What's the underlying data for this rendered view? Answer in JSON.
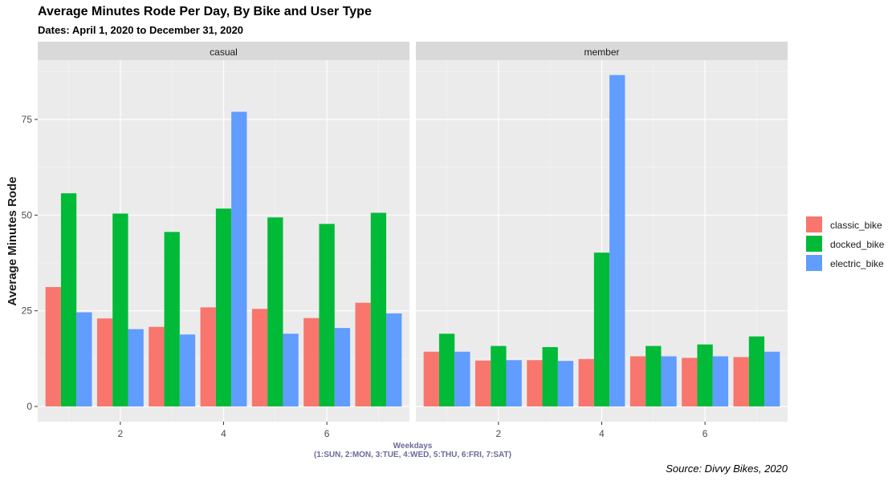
{
  "chart_data": {
    "type": "bar",
    "title": "Average Minutes Rode Per Day, By Bike and User Type",
    "subtitle": "Dates: April 1, 2020 to December 31, 2020",
    "caption": "Source: Divvy Bikes, 2020",
    "ylabel": "Average Minutes Rode",
    "xlabel_line1": "Weekdays",
    "xlabel_line2": "(1:SUN, 2:MON, 3:TUE, 4:WED, 5:THU, 6:FRI, 7:SAT)",
    "x": [
      1,
      2,
      3,
      4,
      5,
      6,
      7
    ],
    "x_ticks": [
      2,
      4,
      6
    ],
    "y_ticks": [
      0,
      25,
      50,
      75
    ],
    "ylim": [
      0,
      90
    ],
    "xlim": [
      0.4,
      7.6
    ],
    "grid": true,
    "legend_position": "right",
    "panels": [
      {
        "name": "casual",
        "series": [
          {
            "name": "classic_bike",
            "color": "#F8766D",
            "values": [
              31.2,
              23.0,
              20.8,
              25.9,
              25.5,
              23.1,
              27.1
            ]
          },
          {
            "name": "docked_bike",
            "color": "#00BA38",
            "values": [
              55.7,
              50.4,
              45.6,
              51.7,
              49.4,
              47.7,
              50.6
            ]
          },
          {
            "name": "electric_bike",
            "color": "#619CFF",
            "values": [
              24.6,
              20.2,
              18.8,
              77.0,
              19.0,
              20.5,
              24.3
            ]
          }
        ]
      },
      {
        "name": "member",
        "series": [
          {
            "name": "classic_bike",
            "color": "#F8766D",
            "values": [
              14.3,
              12.0,
              12.1,
              12.4,
              13.1,
              12.7,
              12.9
            ]
          },
          {
            "name": "docked_bike",
            "color": "#00BA38",
            "values": [
              19.0,
              15.8,
              15.5,
              40.2,
              15.8,
              16.2,
              18.3
            ]
          },
          {
            "name": "electric_bike",
            "color": "#619CFF",
            "values": [
              14.3,
              12.1,
              11.9,
              86.6,
              13.1,
              13.1,
              14.3
            ]
          }
        ]
      }
    ]
  }
}
